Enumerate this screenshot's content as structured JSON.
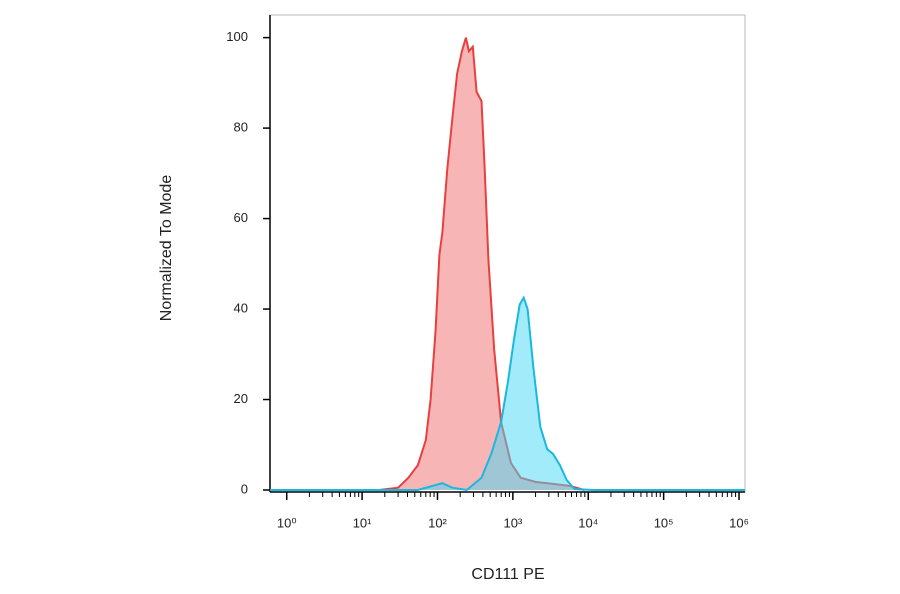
{
  "chart_data": {
    "type": "area",
    "xlabel": "CD111 PE",
    "ylabel": "Normalized To Mode",
    "xscale": "log",
    "xlim": [
      0.6,
      1200000
    ],
    "ylim": [
      0,
      105
    ],
    "xticks": [
      {
        "value": 1,
        "label": "10⁰"
      },
      {
        "value": 10,
        "label": "10¹"
      },
      {
        "value": 100,
        "label": "10²"
      },
      {
        "value": 1000,
        "label": "10³"
      },
      {
        "value": 10000,
        "label": "10⁴"
      },
      {
        "value": 100000,
        "label": "10⁵"
      },
      {
        "value": 1000000,
        "label": "10⁶"
      }
    ],
    "yticks": [
      0,
      20,
      40,
      60,
      80,
      100
    ],
    "series": [
      {
        "color": "#e8403f",
        "fill": "rgba(240,90,90,0.45)",
        "x": [
          17,
          30,
          41,
          55,
          70,
          81,
          94,
          106,
          116,
          135,
          157,
          182,
          211,
          238,
          261,
          294,
          330,
          384,
          420,
          473,
          566,
          698,
          942,
          1270,
          1990,
          3610,
          5660,
          8870
        ],
        "values": [
          0,
          0.5,
          2.7,
          5.5,
          11,
          20,
          35,
          52,
          57,
          71,
          82,
          92,
          97,
          100,
          97,
          98,
          88,
          86,
          72,
          51,
          31,
          15,
          6,
          2.7,
          1.8,
          1.3,
          0.9,
          0
        ]
      },
      {
        "color": "#1ab8e0",
        "fill": "rgba(70,215,245,0.5)",
        "x": [
          0.6,
          55,
          86,
          116,
          157,
          245,
          384,
          518,
          698,
          861,
          1030,
          1230,
          1390,
          1570,
          1870,
          2310,
          2850,
          3410,
          4200,
          5180,
          6580,
          12000,
          1200000
        ],
        "values": [
          0,
          0,
          0.9,
          1.5,
          0.5,
          0,
          2.7,
          8,
          15,
          24,
          33,
          41,
          42.5,
          40,
          27,
          14,
          9,
          8,
          5.5,
          2.2,
          0.2,
          0,
          0
        ]
      }
    ]
  }
}
